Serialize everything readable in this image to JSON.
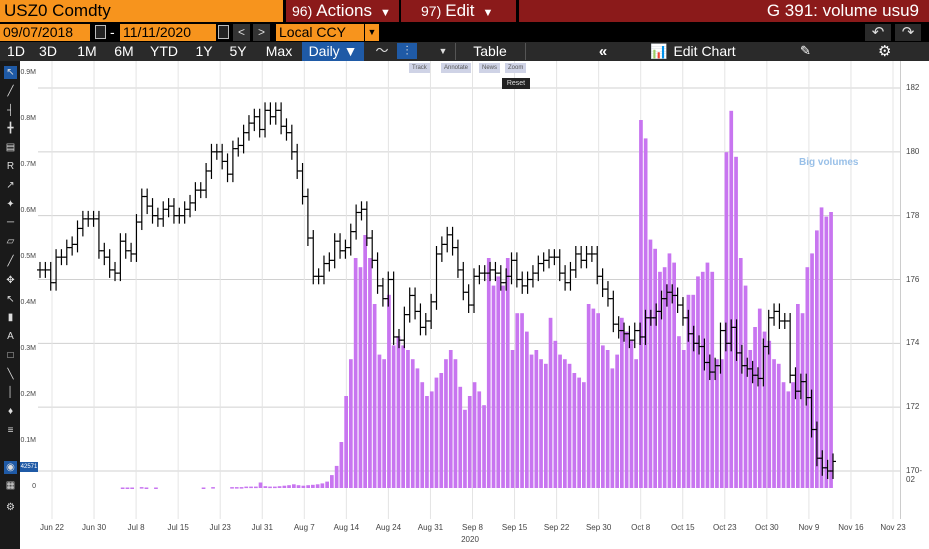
{
  "header": {
    "ticker": "USZ0 Comdty",
    "actions_num": "96)",
    "actions_label": "Actions",
    "edit_num": "97)",
    "edit_label": "Edit",
    "graph_title": "G 391: volume usu9"
  },
  "range": {
    "start": "09/07/2018",
    "dash": "-",
    "end": "11/11/2020",
    "currency": "Local CCY"
  },
  "periods": [
    "1D",
    "3D",
    "1M",
    "6M",
    "YTD",
    "1Y",
    "5Y",
    "Max"
  ],
  "frequency": "Daily ▼",
  "toolbar": {
    "table_label": "Table",
    "edit_chart_label": "Edit Chart"
  },
  "mini_toolbar": [
    "Track",
    "Annotate",
    "News",
    "Zoom"
  ],
  "reset_label": "Reset",
  "volume_badge": "42571",
  "annotation": "Big volumes",
  "chart_data": {
    "type": "bar",
    "title": "",
    "x_ticks": [
      "Jun 22",
      "Jun 30",
      "Jul 8",
      "Jul 15",
      "Jul 23",
      "Jul 31",
      "Aug 7",
      "Aug 14",
      "Aug 24",
      "Aug 31",
      "Sep 8",
      "Sep 15",
      "Sep 22",
      "Sep 30",
      "Oct 8",
      "Oct 15",
      "Oct 23",
      "Oct 30",
      "Nov 9",
      "Nov 16",
      "Nov 23"
    ],
    "x_year_label": "2020",
    "left_axis_ticks": [
      "0",
      "0.1M",
      "0.2M",
      "0.3M",
      "0.4M",
      "0.5M",
      "0.6M",
      "0.7M",
      "0.8M",
      "0.9M"
    ],
    "right_axis_ticks": [
      "170-02",
      "172",
      "174",
      "176",
      "178",
      "180",
      "182"
    ],
    "volume_ylim": [
      0,
      900000
    ],
    "price_ylim": [
      169.5,
      182.5
    ],
    "colors": {
      "volume": "#c875f0",
      "price": "#000000",
      "annotation": "#99c0e8"
    },
    "volume_series": {
      "name": "Volume",
      "values": [
        0,
        0,
        0,
        0,
        0,
        0,
        0,
        0,
        0,
        0,
        0,
        0,
        0,
        0,
        0,
        0,
        0,
        1000,
        1000,
        1000,
        0,
        2000,
        1000,
        0,
        1000,
        0,
        0,
        0,
        0,
        0,
        0,
        0,
        0,
        0,
        1000,
        0,
        2000,
        0,
        0,
        0,
        2000,
        2000,
        2000,
        3000,
        3000,
        3000,
        12000,
        4000,
        3000,
        3000,
        4000,
        5000,
        6000,
        8000,
        6000,
        5000,
        6000,
        7000,
        8000,
        10000,
        14000,
        28000,
        48000,
        100000,
        200000,
        280000,
        500000,
        480000,
        550000,
        500000,
        400000,
        290000,
        280000,
        420000,
        310000,
        330000,
        310000,
        300000,
        280000,
        260000,
        230000,
        200000,
        210000,
        240000,
        250000,
        280000,
        300000,
        280000,
        220000,
        170000,
        200000,
        230000,
        210000,
        180000,
        500000,
        440000,
        460000,
        440000,
        500000,
        300000,
        380000,
        380000,
        340000,
        290000,
        300000,
        280000,
        270000,
        370000,
        320000,
        290000,
        280000,
        270000,
        250000,
        240000,
        230000,
        400000,
        390000,
        380000,
        310000,
        300000,
        260000,
        290000,
        370000,
        340000,
        320000,
        280000,
        800000,
        760000,
        540000,
        520000,
        470000,
        480000,
        510000,
        490000,
        330000,
        300000,
        420000,
        420000,
        460000,
        470000,
        490000,
        470000,
        280000,
        280000,
        730000,
        820000,
        720000,
        500000,
        440000,
        300000,
        350000,
        390000,
        340000,
        320000,
        280000,
        270000,
        230000,
        210000,
        230000,
        400000,
        380000,
        480000,
        510000,
        560000,
        610000,
        590000,
        600000
      ]
    },
    "price_series": {
      "name": "Price",
      "values": [
        176.3,
        176.3,
        175.9,
        176.7,
        176.7,
        177.0,
        177.1,
        177.6,
        177.9,
        177.9,
        177.9,
        176.9,
        176.7,
        176.3,
        176.2,
        177.2,
        176.9,
        176.8,
        177.8,
        178.6,
        178.3,
        178.0,
        177.9,
        178.2,
        178.3,
        178.0,
        178.0,
        178.2,
        178.4,
        178.8,
        178.8,
        179.4,
        180.0,
        180.0,
        179.7,
        179.3,
        180.1,
        180.2,
        180.6,
        180.9,
        181.1,
        180.7,
        181.3,
        181.1,
        181.3,
        180.8,
        180.6,
        180.0,
        179.4,
        178.6,
        177.3,
        176.1,
        176.1,
        176.5,
        176.6,
        177.2,
        176.9,
        177.0,
        177.5,
        178.1,
        178.2,
        177.3,
        176.6,
        175.8,
        175.4,
        176.0,
        174.2,
        174.1,
        174.9,
        175.5,
        175.0,
        174.5,
        174.7,
        175.3,
        176.8,
        177.1,
        177.4,
        177.0,
        176.3,
        175.6,
        175.2,
        176.1,
        176.2,
        176.2,
        176.3,
        176.2,
        175.9,
        176.1,
        176.6,
        176.0,
        175.8,
        176.0,
        176.2,
        176.5,
        176.6,
        176.7,
        176.7,
        176.2,
        175.9,
        176.3,
        176.8,
        176.6,
        176.8,
        176.8,
        176.1,
        175.7,
        175.4,
        174.6,
        174.4,
        174.3,
        174.1,
        174.4,
        174.2,
        174.8,
        174.8,
        175.0,
        175.4,
        175.6,
        175.5,
        175.2,
        174.8,
        174.3,
        174.0,
        173.9,
        173.4,
        173.1,
        173.3,
        174.4,
        174.0,
        174.5,
        173.7,
        173.3,
        173.2,
        173.0,
        172.9,
        173.9,
        174.8,
        175.0,
        174.7,
        174.7,
        173.0,
        172.5,
        172.8,
        172.3,
        171.3,
        170.4,
        170.1,
        170.0,
        170.3
      ]
    }
  }
}
